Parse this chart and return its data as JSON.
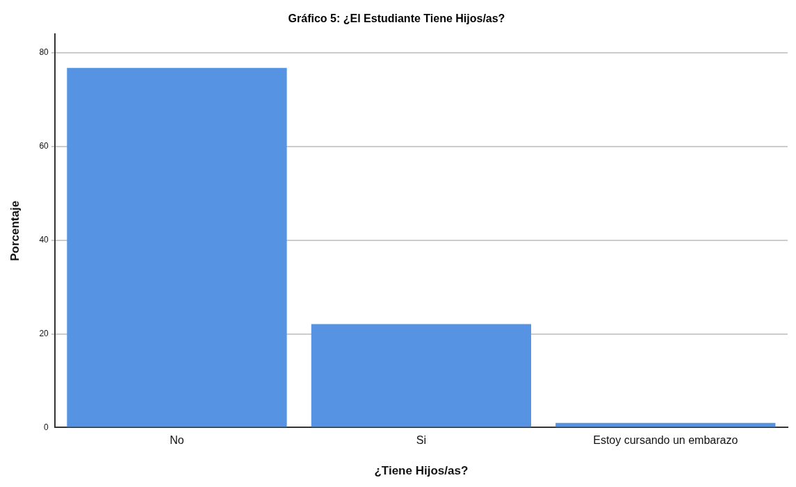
{
  "chart_data": {
    "type": "bar",
    "title": "Gráfico 5: ¿El Estudiante Tiene Hijos/as?",
    "xlabel": "¿Tiene Hijos/as?",
    "ylabel": "Porcentaje",
    "categories": [
      "No",
      "Si",
      "Estoy cursando un embarazo"
    ],
    "values": [
      76.8,
      22.1,
      1.0
    ],
    "color": "#5694e3",
    "ylim": [
      0,
      84
    ],
    "yticks": [
      0,
      20,
      40,
      60,
      80
    ],
    "grid": "y"
  }
}
